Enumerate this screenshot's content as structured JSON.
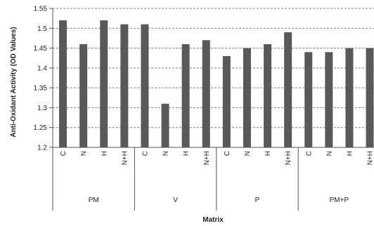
{
  "chart_data": {
    "type": "bar",
    "title": "",
    "xlabel": "Matrix",
    "ylabel": "Anti-Oxidant Activity (OD Values)",
    "ylim": [
      1.2,
      1.55
    ],
    "yticks": [
      "1.2",
      "1.25",
      "1.3",
      "1.35",
      "1.4",
      "1.45",
      "1.5",
      "1.55"
    ],
    "grid": "horizontal",
    "legend": "none",
    "bar_color": "#595959",
    "groups": [
      {
        "name": "PM",
        "categories": [
          "C",
          "N",
          "H",
          "N+H"
        ],
        "values": [
          1.52,
          1.46,
          1.52,
          1.51
        ]
      },
      {
        "name": "V",
        "categories": [
          "C",
          "N",
          "H",
          "N+H"
        ],
        "values": [
          1.51,
          1.31,
          1.46,
          1.47
        ]
      },
      {
        "name": "P",
        "categories": [
          "C",
          "N",
          "H",
          "N+H"
        ],
        "values": [
          1.43,
          1.45,
          1.46,
          1.49
        ]
      },
      {
        "name": "PM+P",
        "categories": [
          "C",
          "N",
          "H",
          "N+H"
        ],
        "values": [
          1.44,
          1.44,
          1.45,
          1.45
        ]
      }
    ]
  }
}
